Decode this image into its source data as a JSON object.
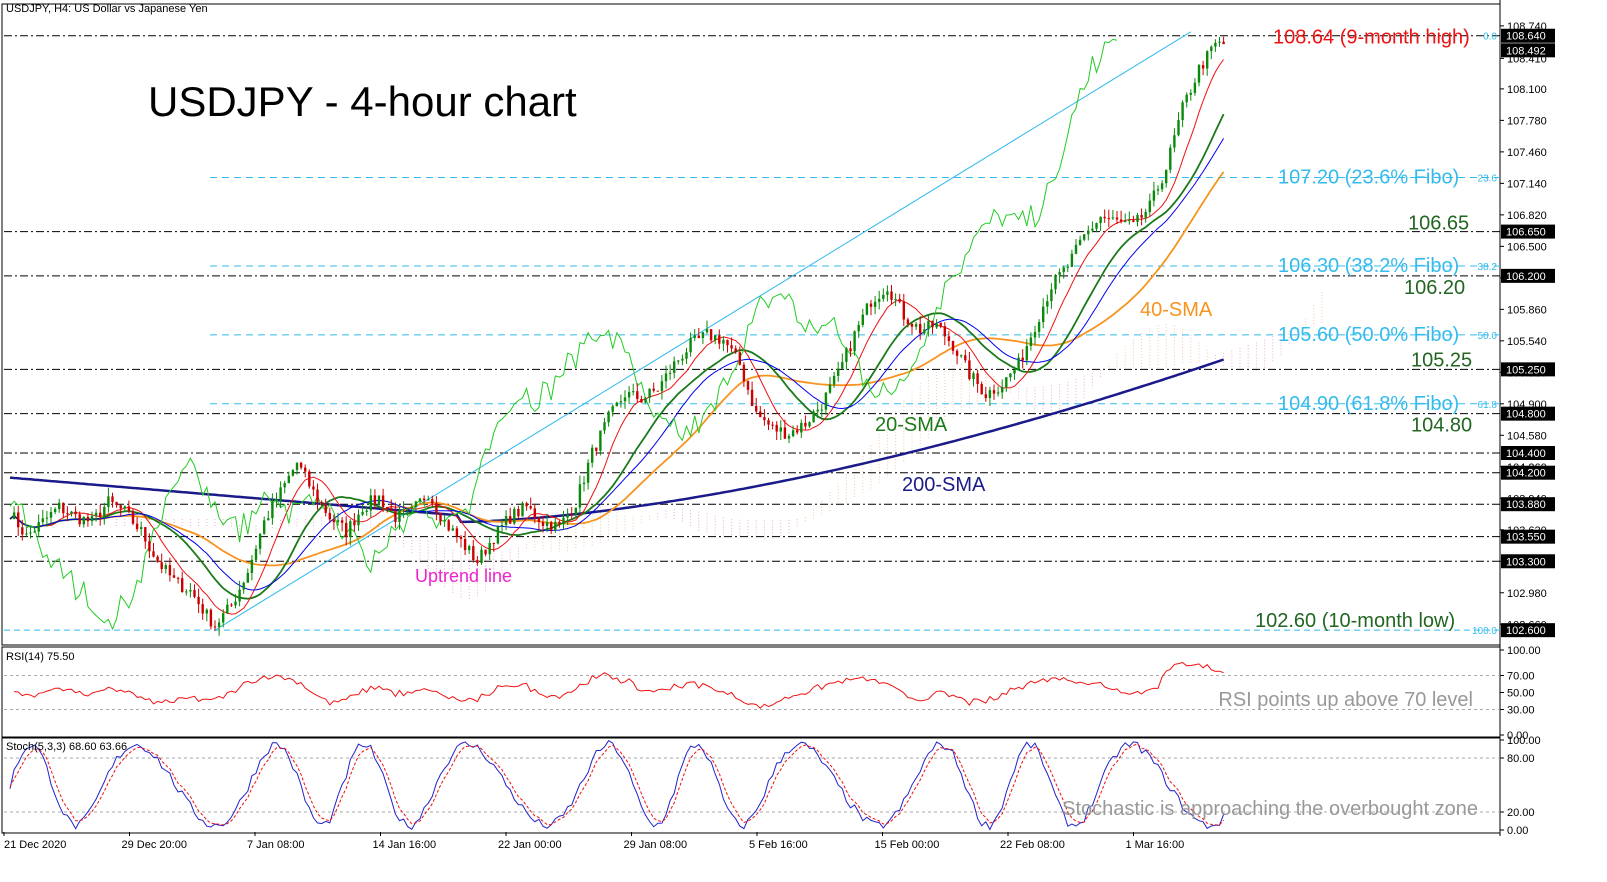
{
  "header": {
    "symbol_info": "USDJPY, H4:  US Dollar vs Japanese Yen",
    "title": "USDJPY - 4-hour chart"
  },
  "chart_data": [
    {
      "type": "line",
      "name": "price",
      "price_axis_ticks": [
        "108.740",
        "108.410",
        "108.100",
        "107.780",
        "107.460",
        "107.140",
        "106.820",
        "106.500",
        "106.180",
        "105.860",
        "105.540",
        "105.220",
        "104.900",
        "104.580",
        "104.260",
        "103.940",
        "103.620",
        "103.300",
        "102.980",
        "102.660"
      ],
      "price_markers": [
        {
          "value": 108.64,
          "label": "108.640",
          "style": "dash-dot",
          "color": "#000000"
        },
        {
          "value": 108.492,
          "label": "108.492",
          "style": "none",
          "color": "#000000"
        },
        {
          "value": 106.65,
          "label": "106.650",
          "style": "dash-dot",
          "color": "#000000"
        },
        {
          "value": 106.2,
          "label": "106.200",
          "style": "dash-dot",
          "color": "#000000"
        },
        {
          "value": 105.25,
          "label": "105.250",
          "style": "dash-dot",
          "color": "#000000"
        },
        {
          "value": 104.8,
          "label": "104.800",
          "style": "dash-dot",
          "color": "#000000"
        },
        {
          "value": 104.4,
          "label": "104.400",
          "style": "dash-dot",
          "color": "#000000"
        },
        {
          "value": 104.2,
          "label": "104.200",
          "style": "dash-dot",
          "color": "#000000"
        },
        {
          "value": 103.88,
          "label": "103.880",
          "style": "dash-dot",
          "color": "#000000"
        },
        {
          "value": 103.55,
          "label": "103.550",
          "style": "dash-dot",
          "color": "#000000"
        },
        {
          "value": 103.3,
          "label": "103.300",
          "style": "dash-dot",
          "color": "#000000"
        },
        {
          "value": 102.6,
          "label": "102.600",
          "style": "dash",
          "color": "#33bbee"
        }
      ],
      "fibo_levels": [
        {
          "value": 108.64,
          "label": "0.0"
        },
        {
          "value": 107.2,
          "label": "23.6"
        },
        {
          "value": 106.3,
          "label": "38.2"
        },
        {
          "value": 105.6,
          "label": "50.0"
        },
        {
          "value": 104.9,
          "label": "61.8"
        },
        {
          "value": 102.6,
          "label": "100.0"
        }
      ],
      "annotations": [
        {
          "text": "108.64 (9-month high)",
          "value": 108.64,
          "color": "#ee1111"
        },
        {
          "text": "107.20 (23.6% Fibo)",
          "value": 107.2,
          "color": "#33bbee"
        },
        {
          "text": "106.65",
          "value": 106.65,
          "color": "#226622"
        },
        {
          "text": "106.30 (38.2% Fibo)",
          "value": 106.3,
          "color": "#33bbee"
        },
        {
          "text": "106.20",
          "value": 106.2,
          "color": "#226622"
        },
        {
          "text": "105.60 (50.0% Fibo)",
          "value": 105.6,
          "color": "#33bbee"
        },
        {
          "text": "105.25",
          "value": 105.25,
          "color": "#226622"
        },
        {
          "text": "104.90 (61.8% Fibo)",
          "value": 104.9,
          "color": "#33bbee"
        },
        {
          "text": "104.80",
          "value": 104.8,
          "color": "#226622"
        },
        {
          "text": "102.60 (10-month low)",
          "value": 102.6,
          "color": "#226622"
        },
        {
          "text": "40-SMA",
          "color": "#f7931e"
        },
        {
          "text": "20-SMA",
          "color": "#1a7a1a"
        },
        {
          "text": "200-SMA",
          "color": "#1a1a8a"
        },
        {
          "text": "Uptrend line",
          "color": "#ee22cc"
        }
      ],
      "x_ticks": [
        "21 Dec 2020",
        "29 Dec 20:00",
        "7 Jan 08:00",
        "14 Jan 16:00",
        "22 Jan 00:00",
        "29 Jan 08:00",
        "5 Feb 16:00",
        "15 Feb 00:00",
        "22 Feb 08:00",
        "1 Mar 16:00"
      ],
      "ylim": [
        102.5,
        108.8
      ],
      "close_path": [
        [
          0,
          103.8
        ],
        [
          4,
          103.55
        ],
        [
          8,
          103.7
        ],
        [
          12,
          103.85
        ],
        [
          16,
          103.75
        ],
        [
          20,
          103.7
        ],
        [
          24,
          103.9
        ],
        [
          28,
          103.8
        ],
        [
          32,
          103.6
        ],
        [
          36,
          103.3
        ],
        [
          40,
          103.1
        ],
        [
          44,
          103.0
        ],
        [
          48,
          102.75
        ],
        [
          50,
          102.65
        ],
        [
          54,
          102.85
        ],
        [
          58,
          103.2
        ],
        [
          62,
          103.7
        ],
        [
          66,
          104.0
        ],
        [
          70,
          104.3
        ],
        [
          74,
          104.0
        ],
        [
          78,
          103.75
        ],
        [
          82,
          103.6
        ],
        [
          86,
          103.85
        ],
        [
          90,
          103.95
        ],
        [
          94,
          103.75
        ],
        [
          98,
          103.8
        ],
        [
          102,
          104.0
        ],
        [
          106,
          103.7
        ],
        [
          110,
          103.5
        ],
        [
          114,
          103.3
        ],
        [
          118,
          103.55
        ],
        [
          122,
          103.75
        ],
        [
          126,
          103.85
        ],
        [
          130,
          103.7
        ],
        [
          134,
          103.65
        ],
        [
          138,
          103.9
        ],
        [
          142,
          104.4
        ],
        [
          146,
          104.75
        ],
        [
          150,
          105.0
        ],
        [
          154,
          104.95
        ],
        [
          158,
          105.05
        ],
        [
          162,
          105.3
        ],
        [
          166,
          105.5
        ],
        [
          170,
          105.6
        ],
        [
          174,
          105.55
        ],
        [
          178,
          105.3
        ],
        [
          182,
          104.8
        ],
        [
          186,
          104.65
        ],
        [
          190,
          104.6
        ],
        [
          194,
          104.7
        ],
        [
          198,
          104.9
        ],
        [
          202,
          105.2
        ],
        [
          206,
          105.6
        ],
        [
          210,
          105.95
        ],
        [
          214,
          106.1
        ],
        [
          218,
          105.8
        ],
        [
          222,
          105.65
        ],
        [
          226,
          105.7
        ],
        [
          230,
          105.5
        ],
        [
          234,
          105.2
        ],
        [
          238,
          105.0
        ],
        [
          242,
          105.1
        ],
        [
          246,
          105.3
        ],
        [
          250,
          105.7
        ],
        [
          254,
          106.1
        ],
        [
          258,
          106.3
        ],
        [
          262,
          106.6
        ],
        [
          266,
          106.8
        ],
        [
          270,
          106.75
        ],
        [
          274,
          106.7
        ],
        [
          278,
          106.9
        ],
        [
          282,
          107.3
        ],
        [
          286,
          107.9
        ],
        [
          290,
          108.3
        ],
        [
          294,
          108.55
        ]
      ],
      "close_x_max": 300,
      "series_styles": {
        "sma20": "#1a7a1a",
        "sma40": "#f7931e",
        "sma200": "#1a1a8a",
        "tenkan": "#ee1111",
        "kijun": "#0000ee",
        "chikou": "#22cc22",
        "cloud": "#f4c9a8",
        "cloud_bear": "#f0a8d8"
      }
    },
    {
      "type": "line",
      "name": "rsi",
      "label": "RSI(14) 75.50",
      "caption": "RSI points up above 70 level",
      "ticks": [
        "100.00",
        "70.00",
        "50.00",
        "30.00",
        "0.00"
      ],
      "ylim": [
        0,
        100
      ],
      "levels": [
        70,
        30
      ],
      "color": "#ee1111"
    },
    {
      "type": "line",
      "name": "stochastic",
      "label": "Stoch(5,3,3) 68.60 63.66",
      "caption": "Stochastic is approaching the overbought zone",
      "ticks": [
        "100.00",
        "80.00",
        "20.00",
        "0.00"
      ],
      "ylim": [
        0,
        100
      ],
      "levels": [
        80,
        20
      ],
      "main_color": "#2222cc",
      "signal_color": "#ee1111"
    }
  ]
}
